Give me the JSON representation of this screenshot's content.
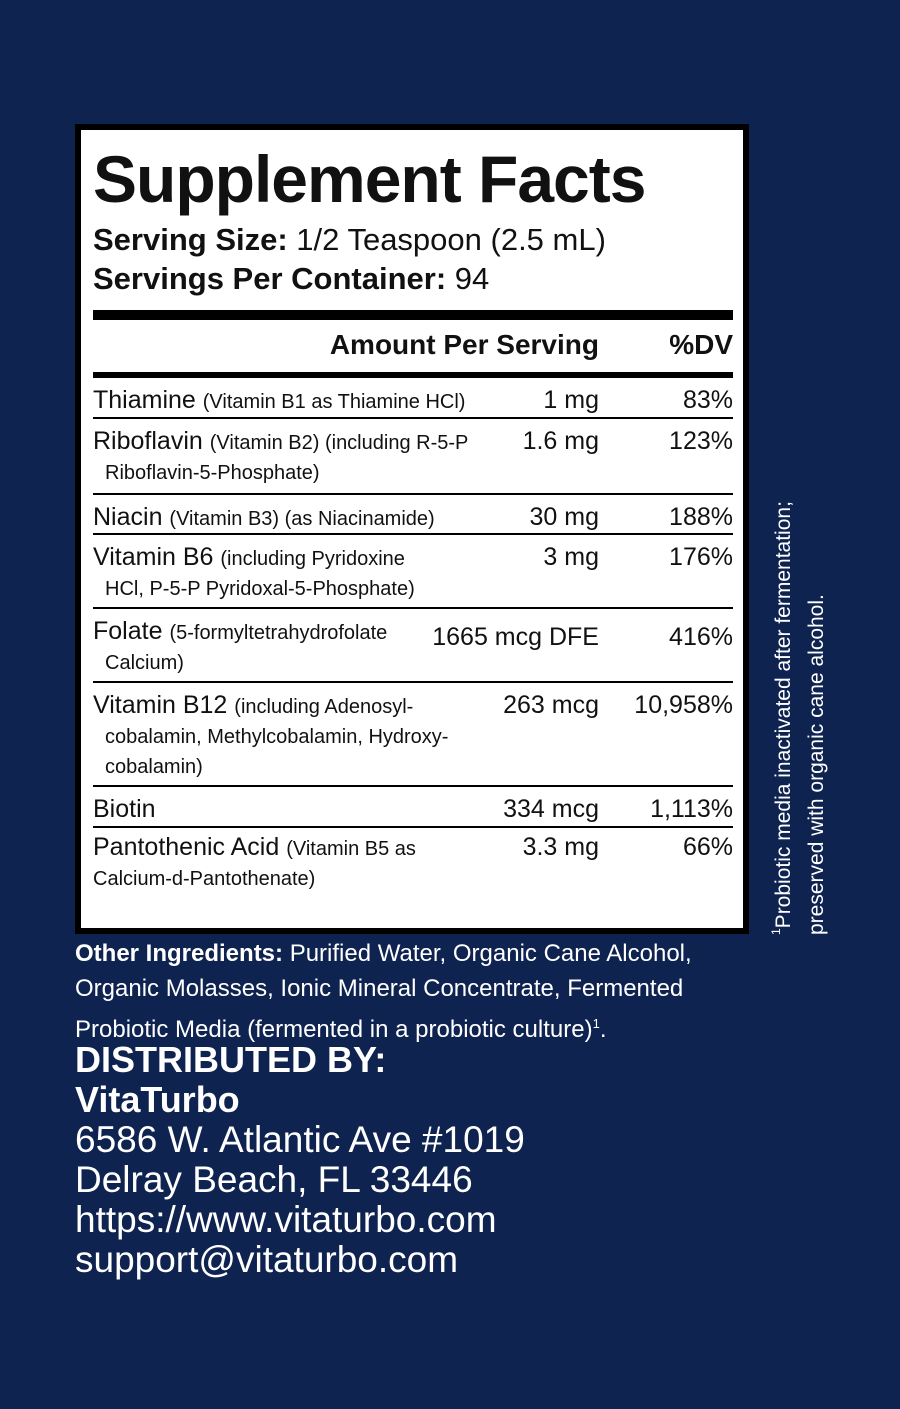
{
  "facts": {
    "title": "Supplement Facts",
    "serving_size_label": "Serving Size:",
    "serving_size_value": " 1/2 Teaspoon (2.5 mL)",
    "servings_label": "Servings Per Container:",
    "servings_value": " 94",
    "header_amount": "Amount Per Serving",
    "header_dv": "%DV",
    "rows": [
      {
        "name": "Thiamine ",
        "detail": "(Vitamin B1 as Thiamine HCl)",
        "detail2": "",
        "amount": "1 mg",
        "dv": "83%"
      },
      {
        "name": "Riboflavin ",
        "detail": "(Vitamin B2) (including R-5-P",
        "detail2": "Riboflavin-5-Phosphate)",
        "amount": "1.6 mg",
        "dv": "123%"
      },
      {
        "name": "Niacin ",
        "detail": "(Vitamin B3) (as Niacinamide)",
        "detail2": "",
        "amount": "30 mg",
        "dv": "188%"
      },
      {
        "name": "Vitamin B6 ",
        "detail": "(including Pyridoxine",
        "detail2": "HCl, P-5-P Pyridoxal-5-Phosphate)",
        "amount": "3 mg",
        "dv": "176%"
      },
      {
        "name": "Folate ",
        "detail": "(5-formyltetrahydrofolate",
        "detail2": "Calcium)",
        "amount": "1665 mcg DFE",
        "dv": "416%"
      },
      {
        "name": "Vitamin B12 ",
        "detail": "(including Adenosyl-",
        "detail2": "cobalamin, Methylcobalamin, Hydroxy-",
        "detail3": "cobalamin)",
        "amount": "263 mcg",
        "dv": "10,958%"
      },
      {
        "name": "Biotin",
        "detail": "",
        "detail2": "",
        "amount": "334 mcg",
        "dv": "1,113%"
      },
      {
        "name": "Pantothenic Acid ",
        "detail": "(Vitamin B5 as",
        "detail2": "Calcium-d-Pantothenate)",
        "amount": "3.3 mg",
        "dv": "66%"
      }
    ]
  },
  "footnote": {
    "marker": "1",
    "line1": "Probiotic media inactivated after fermentation;",
    "line2": "preserved with organic cane alcohol."
  },
  "ingredients": {
    "label": "Other Ingredients:",
    "text": " Purified Water, Organic Cane Alcohol, Organic Molasses, Ionic Mineral Concentrate, Fermented Probiotic Media (fermented in a probiotic culture)",
    "marker": "1",
    "end": "."
  },
  "distributor": {
    "heading": "DISTRIBUTED BY:",
    "company": "VitaTurbo",
    "address1": "6586 W. Atlantic Ave #1019",
    "address2": "Delray Beach, FL 33446",
    "website": "https://www.vitaturbo.com",
    "email": "support@vitaturbo.com"
  },
  "colors": {
    "background": "#0f2350",
    "panel": "#ffffff",
    "rule": "#000000",
    "text_on_dark": "#ffffff"
  }
}
